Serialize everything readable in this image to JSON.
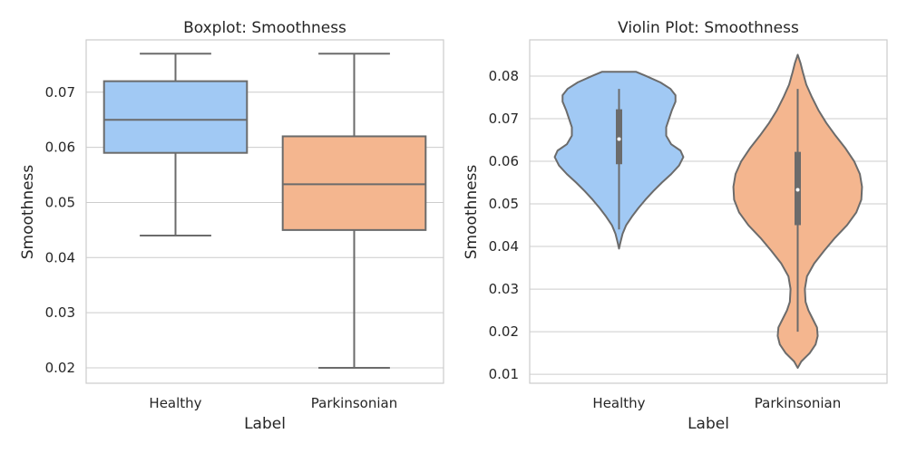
{
  "chart_data": [
    {
      "type": "box",
      "title": "Boxplot: Smoothness",
      "xlabel": "Label",
      "ylabel": "Smoothness",
      "categories": [
        "Healthy",
        "Parkinsonian"
      ],
      "ylim": [
        0.0172,
        0.0795
      ],
      "yticks": [
        0.02,
        0.03,
        0.04,
        0.05,
        0.06,
        0.07
      ],
      "ytick_labels": [
        "0.02",
        "0.03",
        "0.04",
        "0.05",
        "0.06",
        "0.07"
      ],
      "grid": true,
      "series": [
        {
          "category": "Healthy",
          "min": 0.044,
          "q1": 0.059,
          "median": 0.065,
          "q3": 0.072,
          "max": 0.077
        },
        {
          "category": "Parkinsonian",
          "min": 0.02,
          "q1": 0.045,
          "median": 0.0533,
          "q3": 0.062,
          "max": 0.077
        }
      ],
      "colors": [
        "#a1c9f4",
        "#f4b68f"
      ]
    },
    {
      "type": "violin",
      "title": "Violin Plot: Smoothness",
      "xlabel": "Label",
      "ylabel": "Smoothness",
      "categories": [
        "Healthy",
        "Parkinsonian"
      ],
      "ylim": [
        0.0079,
        0.0885
      ],
      "yticks": [
        0.01,
        0.02,
        0.03,
        0.04,
        0.05,
        0.06,
        0.07,
        0.08
      ],
      "ytick_labels": [
        "0.01",
        "0.02",
        "0.03",
        "0.04",
        "0.05",
        "0.06",
        "0.07",
        "0.08"
      ],
      "grid": true,
      "series": [
        {
          "category": "Healthy",
          "q1": 0.0593,
          "median": 0.0652,
          "q3": 0.0722,
          "whisker_low": 0.044,
          "whisker_high": 0.077,
          "density": [
            [
              0.0395,
              0.0
            ],
            [
              0.041,
              0.02
            ],
            [
              0.043,
              0.05
            ],
            [
              0.045,
              0.1
            ],
            [
              0.047,
              0.18
            ],
            [
              0.049,
              0.27
            ],
            [
              0.051,
              0.37
            ],
            [
              0.053,
              0.48
            ],
            [
              0.055,
              0.6
            ],
            [
              0.057,
              0.73
            ],
            [
              0.059,
              0.84
            ],
            [
              0.061,
              0.9
            ],
            [
              0.0625,
              0.86
            ],
            [
              0.064,
              0.73
            ],
            [
              0.066,
              0.66
            ],
            [
              0.068,
              0.66
            ],
            [
              0.07,
              0.7
            ],
            [
              0.072,
              0.74
            ],
            [
              0.074,
              0.79
            ],
            [
              0.0755,
              0.79
            ],
            [
              0.077,
              0.72
            ],
            [
              0.0785,
              0.58
            ],
            [
              0.08,
              0.38
            ],
            [
              0.081,
              0.24
            ]
          ]
        },
        {
          "category": "Parkinsonian",
          "q1": 0.045,
          "median": 0.0533,
          "q3": 0.0622,
          "whisker_low": 0.02,
          "whisker_high": 0.077,
          "density": [
            [
              0.0115,
              0.0
            ],
            [
              0.013,
              0.05
            ],
            [
              0.015,
              0.17
            ],
            [
              0.017,
              0.25
            ],
            [
              0.019,
              0.28
            ],
            [
              0.021,
              0.27
            ],
            [
              0.023,
              0.21
            ],
            [
              0.025,
              0.15
            ],
            [
              0.027,
              0.11
            ],
            [
              0.03,
              0.1
            ],
            [
              0.033,
              0.13
            ],
            [
              0.036,
              0.23
            ],
            [
              0.039,
              0.37
            ],
            [
              0.042,
              0.52
            ],
            [
              0.045,
              0.69
            ],
            [
              0.048,
              0.82
            ],
            [
              0.051,
              0.89
            ],
            [
              0.054,
              0.9
            ],
            [
              0.057,
              0.87
            ],
            [
              0.06,
              0.79
            ],
            [
              0.063,
              0.67
            ],
            [
              0.066,
              0.53
            ],
            [
              0.069,
              0.4
            ],
            [
              0.072,
              0.29
            ],
            [
              0.075,
              0.2
            ],
            [
              0.078,
              0.12
            ],
            [
              0.081,
              0.07
            ],
            [
              0.083,
              0.04
            ],
            [
              0.085,
              0.0
            ]
          ]
        }
      ],
      "colors": [
        "#a1c9f4",
        "#f4b68f"
      ]
    }
  ],
  "style": {
    "line_color": "#6b6b6b",
    "grid_color": "#cccccc",
    "text_color": "#262626"
  }
}
